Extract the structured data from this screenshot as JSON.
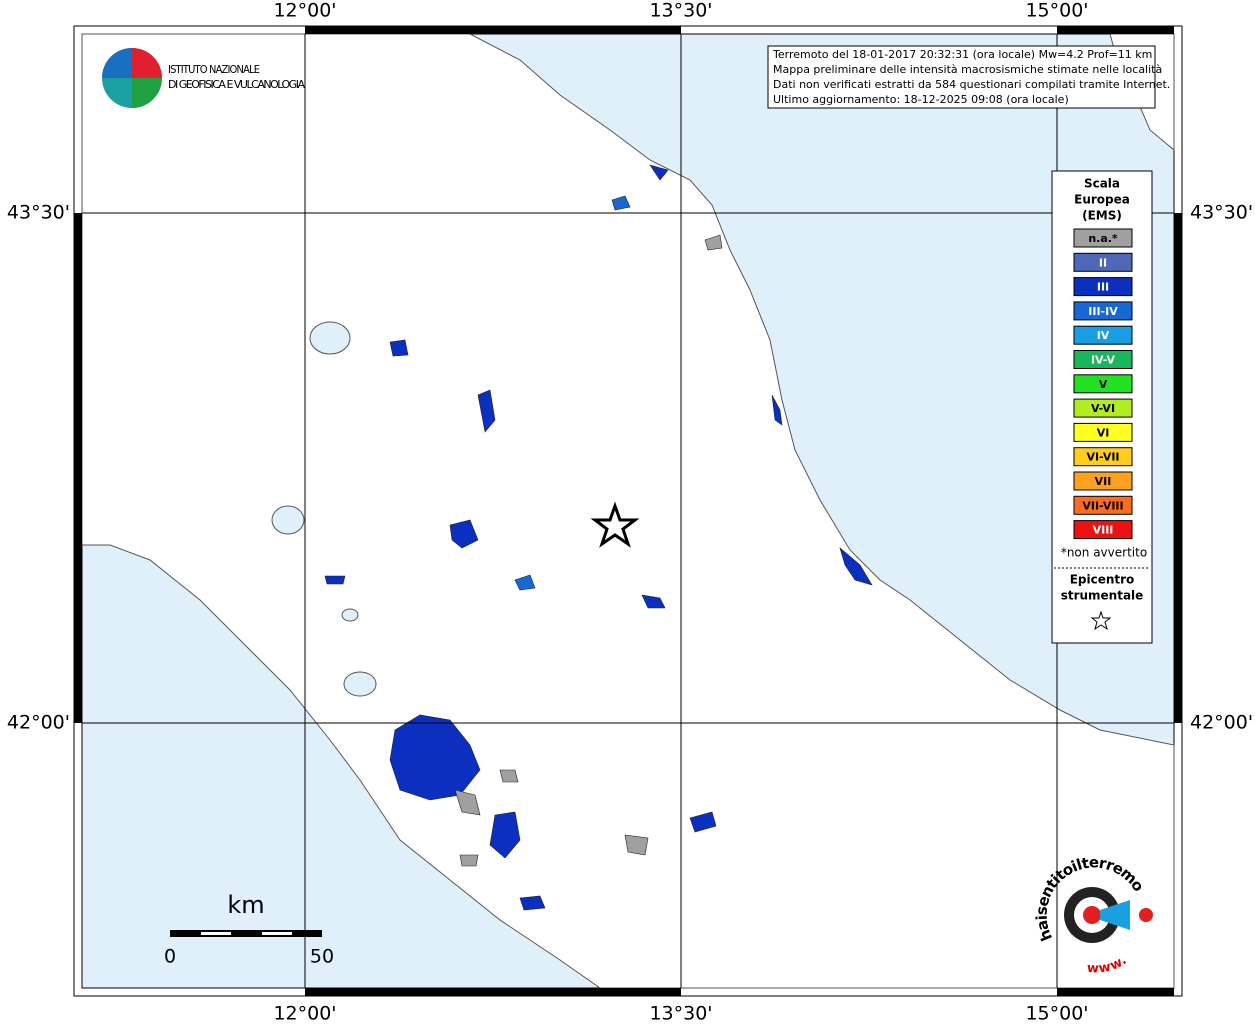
{
  "logo": {
    "lines": [
      "ISTITUTO NAZIONALE",
      "DI GEOFISICA E VULCANOLOGIA"
    ]
  },
  "info": {
    "lines": [
      "Terremoto del 18-01-2017 20:32:31 (ora locale) Mw=4.2 Prof=11 km",
      "Mappa preliminare delle intensità macrosismiche stimate nelle località",
      "Dati non verificati estratti da 584 questionari compilati tramite Internet.",
      "Ultimo aggiornamento: 18-12-2025 09:08 (ora locale)"
    ]
  },
  "grid": {
    "longitudes": [
      "12°00'",
      "13°30'",
      "15°00'"
    ],
    "latitudes": [
      "43°30'",
      "42°00'"
    ]
  },
  "legend": {
    "title": [
      "Scala",
      "Europea",
      "(EMS)"
    ],
    "items": [
      {
        "label": "n.a.*",
        "color": "#a0a0a0"
      },
      {
        "label": "II",
        "color": "#4f67b8"
      },
      {
        "label": "III",
        "color": "#0b2fbf"
      },
      {
        "label": "III-IV",
        "color": "#1768d4"
      },
      {
        "label": "IV",
        "color": "#1a9de3"
      },
      {
        "label": "IV-V",
        "color": "#17b85c"
      },
      {
        "label": "V",
        "color": "#22e022"
      },
      {
        "label": "V-VI",
        "color": "#b0ee22"
      },
      {
        "label": "VI",
        "color": "#ffff22"
      },
      {
        "label": "VI-VII",
        "color": "#ffcc22"
      },
      {
        "label": "VII",
        "color": "#ffa01e"
      },
      {
        "label": "VII-VIII",
        "color": "#ff6c1e"
      },
      {
        "label": "VIII",
        "color": "#ee1111"
      }
    ],
    "note": "*non avvertito",
    "epicenter": [
      "Epicentro",
      "strumentale"
    ]
  },
  "scale_bar": {
    "unit": "km",
    "labels": [
      "0",
      "50"
    ]
  },
  "site_logo": {
    "prefix": "www.",
    "text": "haisentitoilterremoto.it"
  }
}
